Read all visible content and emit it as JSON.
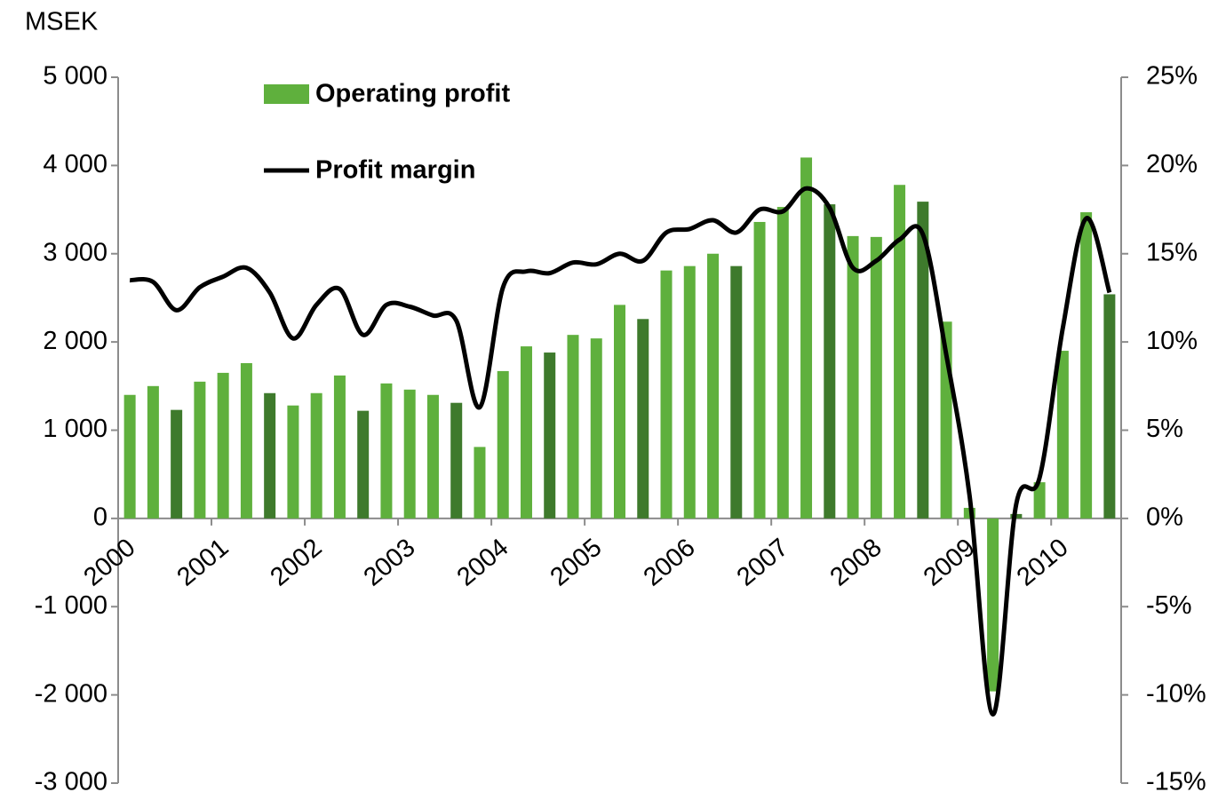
{
  "chart_data": {
    "type": "bar_line",
    "y_axis_label": "MSEK",
    "categories": [
      "2000",
      null,
      null,
      null,
      "2001",
      null,
      null,
      null,
      "2002",
      null,
      null,
      null,
      "2003",
      null,
      null,
      null,
      "2004",
      null,
      null,
      null,
      "2005",
      null,
      null,
      null,
      "2006",
      null,
      null,
      null,
      "2007",
      null,
      null,
      null,
      "2008",
      null,
      null,
      null,
      "2009",
      null,
      null,
      null,
      "2010",
      null,
      null
    ],
    "series": [
      {
        "name": "Operating profit",
        "type": "bar",
        "color": "#5fb03d",
        "colors": [
          "#5fb03d",
          "#5fb03d",
          "#3e7a2c",
          "#5fb03d",
          "#5fb03d",
          "#5fb03d",
          "#3e7a2c",
          "#5fb03d",
          "#5fb03d",
          "#5fb03d",
          "#3e7a2c",
          "#5fb03d",
          "#5fb03d",
          "#5fb03d",
          "#3e7a2c",
          "#5fb03d",
          "#5fb03d",
          "#5fb03d",
          "#3e7a2c",
          "#5fb03d",
          "#5fb03d",
          "#5fb03d",
          "#3e7a2c",
          "#5fb03d",
          "#5fb03d",
          "#5fb03d",
          "#3e7a2c",
          "#5fb03d",
          "#5fb03d",
          "#5fb03d",
          "#3e7a2c",
          "#5fb03d",
          "#5fb03d",
          "#5fb03d",
          "#3e7a2c",
          "#5fb03d",
          "#5fb03d",
          "#5fb03d",
          "#3e7a2c",
          "#5fb03d",
          "#5fb03d",
          "#5fb03d",
          "#3e7a2c"
        ],
        "values": [
          1400,
          1500,
          1230,
          1550,
          1650,
          1760,
          1420,
          1280,
          1420,
          1620,
          1220,
          1530,
          1460,
          1400,
          1310,
          810,
          1670,
          1950,
          1880,
          2080,
          2040,
          2420,
          2260,
          2810,
          2860,
          3000,
          2860,
          3360,
          3530,
          4090,
          3560,
          3200,
          3190,
          3780,
          3590,
          2230,
          120,
          -1960,
          50,
          410,
          1900,
          3470,
          2540
        ]
      },
      {
        "name": "Profit margin",
        "type": "line",
        "axis": "y2",
        "color": "#000000",
        "values": [
          13.5,
          13.4,
          11.8,
          13.1,
          13.7,
          14.2,
          12.8,
          10.2,
          12.1,
          13.0,
          10.4,
          12.1,
          12.0,
          11.5,
          11.2,
          6.3,
          13.1,
          14.0,
          13.9,
          14.5,
          14.4,
          15.0,
          14.6,
          16.2,
          16.4,
          16.9,
          16.2,
          17.5,
          17.4,
          18.7,
          17.6,
          14.2,
          14.6,
          15.8,
          16.1,
          9.3,
          1.3,
          -11.1,
          0.8,
          2.3,
          10.8,
          17.0,
          12.8
        ]
      }
    ],
    "ylim": [
      -3000,
      5000
    ],
    "yticks": [
      {
        "value": -3000,
        "label": "-3 000"
      },
      {
        "value": -2000,
        "label": "-2 000"
      },
      {
        "value": -1000,
        "label": "-1 000"
      },
      0,
      {
        "value": 1000,
        "label": "1 000"
      },
      {
        "value": 2000,
        "label": "2 000"
      },
      {
        "value": 3000,
        "label": "3 000"
      },
      {
        "value": 4000,
        "label": "4 000"
      },
      {
        "value": 5000,
        "label": "5 000"
      }
    ],
    "y2lim": [
      -15,
      25
    ],
    "y2ticks": [
      {
        "value": -15,
        "label": "-15%"
      },
      {
        "value": -10,
        "label": "-10%"
      },
      {
        "value": -5,
        "label": "-5%"
      },
      {
        "value": 0,
        "label": "0%"
      },
      {
        "value": 5,
        "label": "5%"
      },
      {
        "value": 10,
        "label": "10%"
      },
      {
        "value": 15,
        "label": "15%"
      },
      {
        "value": 20,
        "label": "20%"
      },
      {
        "value": 25,
        "label": "25%"
      }
    ],
    "legend": "top-left",
    "grid": false
  }
}
